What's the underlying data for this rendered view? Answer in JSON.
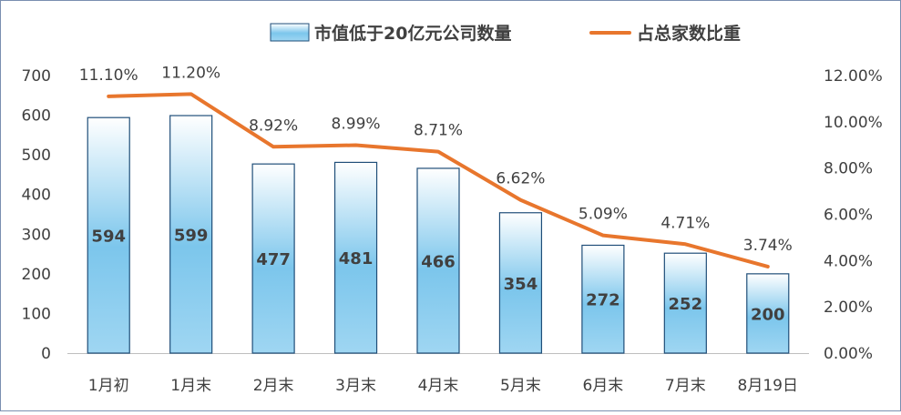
{
  "chart_data": {
    "type": "bar",
    "categories": [
      "1月初",
      "1月末",
      "2月末",
      "3月末",
      "4月末",
      "5月末",
      "6月末",
      "7月末",
      "8月19日"
    ],
    "series": [
      {
        "name": "市值低于20亿元公司数量",
        "type": "bar",
        "axis": "left",
        "values": [
          594,
          599,
          477,
          481,
          466,
          354,
          272,
          252,
          200
        ]
      },
      {
        "name": "占总家数比重",
        "type": "line",
        "axis": "right",
        "values": [
          11.1,
          11.2,
          8.92,
          8.99,
          8.71,
          6.62,
          5.09,
          4.71,
          3.74
        ],
        "labels": [
          "11.10%",
          "11.20%",
          "8.92%",
          "8.99%",
          "8.71%",
          "6.62%",
          "5.09%",
          "4.71%",
          "3.74%"
        ]
      }
    ],
    "y_left": {
      "ylim": [
        0,
        700
      ],
      "ticks": [
        "0",
        "100",
        "200",
        "300",
        "400",
        "500",
        "600",
        "700"
      ]
    },
    "y_right": {
      "ylim": [
        0,
        12
      ],
      "ticks": [
        "0.00%",
        "2.00%",
        "4.00%",
        "6.00%",
        "8.00%",
        "10.00%",
        "12.00%"
      ]
    },
    "title": "",
    "xlabel": "",
    "ylabel": "",
    "grid": false,
    "legend_position": "top-right",
    "colors": {
      "bar_top": "#ffffff",
      "bar_bottom": "#5fb8e6",
      "bar_border": "#1f4e79",
      "line": "#e8762d",
      "axis_text": "#404040",
      "axis_line": "#bfbfbf"
    }
  }
}
